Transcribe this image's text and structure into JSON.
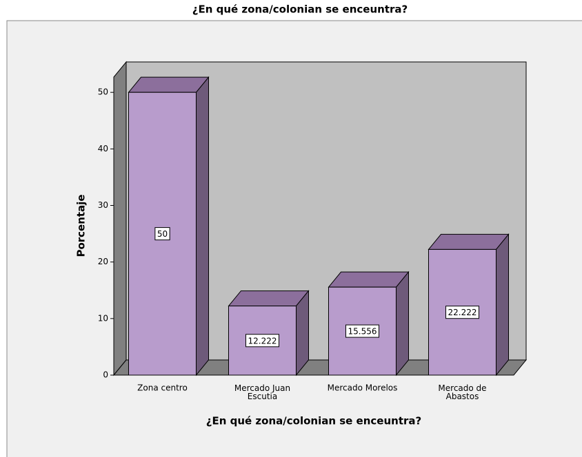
{
  "chart_data": {
    "type": "bar3d",
    "title": "¿En qué zona/colonian se enceuntra?",
    "x_label": "¿En qué zona/colonian se enceuntra?",
    "y_label": "Porcentaje",
    "categories": [
      "Zona centro",
      "Mercado Juan Escutia",
      "Mercado Morelos",
      "Mercado de Abastos"
    ],
    "values": [
      50,
      12.222,
      15.556,
      22.222
    ],
    "color": "#b89ccc",
    "ylim": [
      0,
      52.7
    ],
    "yticks": [
      0,
      10,
      20,
      30,
      40,
      50
    ]
  }
}
